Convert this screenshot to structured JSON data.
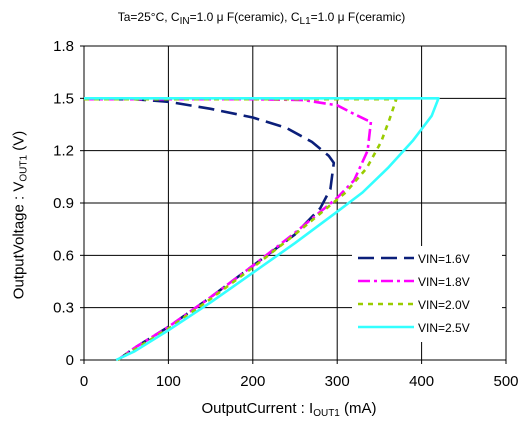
{
  "chart_data": {
    "type": "line",
    "title": "Ta=25°C, C​IN=1.0μF(ceramic), C​L1=1.0μF(ceramic)",
    "title_parts": {
      "prefix": "Ta=25°C, C",
      "sub1": "IN",
      "mid": "=1.0 μ F(ceramic), C",
      "sub2": "L1",
      "suffix": "=1.0 μ F(ceramic)"
    },
    "xlabel_parts": {
      "main": "OutputCurrent : I",
      "sub": "OUT1",
      "unit": " (mA)"
    },
    "ylabel_parts": {
      "main": "OutputVoltage : V",
      "sub": "OUT1",
      "unit": " (V)"
    },
    "xlim": [
      0,
      500
    ],
    "ylim": [
      0,
      1.8
    ],
    "xticks": [
      "0",
      "100",
      "200",
      "300",
      "400",
      "500"
    ],
    "yticks": [
      "0",
      "0.3",
      "0.6",
      "0.9",
      "1.2",
      "1.5",
      "1.8"
    ],
    "grid": true,
    "legend_position": "bottom-right",
    "series": [
      {
        "name": "VIN=1.6V",
        "color": "#0b1f7a",
        "dash": "long-dash",
        "points": [
          [
            0,
            1.495
          ],
          [
            60,
            1.495
          ],
          [
            100,
            1.48
          ],
          [
            150,
            1.44
          ],
          [
            200,
            1.39
          ],
          [
            240,
            1.33
          ],
          [
            270,
            1.25
          ],
          [
            290,
            1.17
          ],
          [
            296,
            1.13
          ],
          [
            292,
            0.98
          ],
          [
            280,
            0.87
          ],
          [
            250,
            0.72
          ],
          [
            200,
            0.54
          ],
          [
            150,
            0.36
          ],
          [
            100,
            0.19
          ],
          [
            60,
            0.07
          ],
          [
            40,
            0.0
          ]
        ]
      },
      {
        "name": "VIN=1.8V",
        "color": "#ff00ff",
        "dash": "dash-dot",
        "points": [
          [
            0,
            1.495
          ],
          [
            200,
            1.495
          ],
          [
            260,
            1.49
          ],
          [
            300,
            1.46
          ],
          [
            320,
            1.41
          ],
          [
            335,
            1.375
          ],
          [
            340,
            1.37
          ],
          [
            336,
            1.2
          ],
          [
            320,
            1.03
          ],
          [
            300,
            0.93
          ],
          [
            250,
            0.73
          ],
          [
            200,
            0.54
          ],
          [
            150,
            0.36
          ],
          [
            100,
            0.19
          ],
          [
            60,
            0.07
          ],
          [
            40,
            0.0
          ]
        ]
      },
      {
        "name": "VIN=2.0V",
        "color": "#99cc00",
        "dash": "short-dash",
        "points": [
          [
            0,
            1.495
          ],
          [
            370,
            1.495
          ],
          [
            362,
            1.38
          ],
          [
            352,
            1.25
          ],
          [
            335,
            1.1
          ],
          [
            310,
            0.96
          ],
          [
            280,
            0.84
          ],
          [
            250,
            0.72
          ],
          [
            200,
            0.53
          ],
          [
            150,
            0.35
          ],
          [
            100,
            0.18
          ],
          [
            60,
            0.06
          ],
          [
            40,
            0.0
          ]
        ]
      },
      {
        "name": "VIN=2.5V",
        "color": "#33ffff",
        "dash": "solid",
        "points": [
          [
            0,
            1.5
          ],
          [
            420,
            1.5
          ],
          [
            412,
            1.4
          ],
          [
            390,
            1.26
          ],
          [
            360,
            1.1
          ],
          [
            330,
            0.96
          ],
          [
            300,
            0.85
          ],
          [
            250,
            0.67
          ],
          [
            200,
            0.5
          ],
          [
            150,
            0.33
          ],
          [
            100,
            0.17
          ],
          [
            60,
            0.05
          ],
          [
            38,
            0.0
          ]
        ]
      }
    ]
  }
}
